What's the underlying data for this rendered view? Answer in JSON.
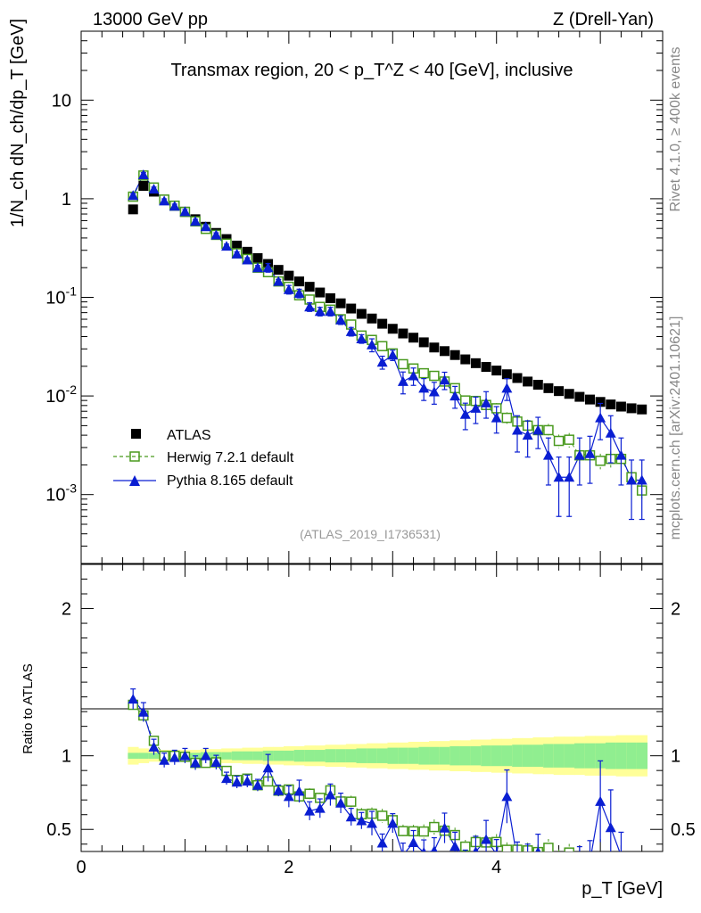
{
  "header": {
    "left": "13000 GeV pp",
    "right": "Z (Drell-Yan)"
  },
  "side_labels": {
    "top": "Rivet 4.1.0, ≥ 400k events",
    "bottom": "mcplots.cern.ch [arXiv:2401.10621]"
  },
  "chart_data": {
    "type": "scatter",
    "title": "Transmax region, 20 < p_T^Z < 40 [GeV], inclusive",
    "analysis_tag": "(ATLAS_2019_I1736531)",
    "xlabel": "p_T [GeV]",
    "ylabel": "1/N_ch dN_ch/dp_T [GeV]",
    "ratio_ylabel": "Ratio to ATLAS",
    "xlim": [
      0,
      5.6
    ],
    "ylim": [
      0.0002,
      50
    ],
    "yscale": "log",
    "ratio_ylim": [
      0.35,
      2.3
    ],
    "x_ticks": [
      "0",
      "2",
      "4"
    ],
    "y_ticks": [
      "10^-3",
      "10^-2",
      "10^-1",
      "1",
      "10"
    ],
    "ratio_ticks": [
      "0.5",
      "1",
      "2"
    ],
    "legend": [
      {
        "key": "atlas",
        "label": "ATLAS",
        "color": "#000000",
        "marker": "square-filled"
      },
      {
        "key": "herwig",
        "label": "Herwig 7.2.1 default",
        "color": "#4a9a1f",
        "marker": "square-open"
      },
      {
        "key": "pythia",
        "label": "Pythia 8.165 default",
        "color": "#0a1ed2",
        "marker": "triangle-filled"
      }
    ],
    "x": [
      0.5,
      0.6,
      0.7,
      0.8,
      0.9,
      1.0,
      1.1,
      1.2,
      1.3,
      1.4,
      1.5,
      1.6,
      1.7,
      1.8,
      1.9,
      2.0,
      2.1,
      2.2,
      2.3,
      2.4,
      2.5,
      2.6,
      2.7,
      2.8,
      2.9,
      3.0,
      3.1,
      3.2,
      3.3,
      3.4,
      3.5,
      3.6,
      3.7,
      3.8,
      3.9,
      4.0,
      4.1,
      4.2,
      4.3,
      4.4,
      4.5,
      4.6,
      4.7,
      4.8,
      4.9,
      5.0,
      5.1,
      5.2,
      5.3,
      5.4
    ],
    "series": [
      {
        "name": "ATLAS",
        "values": [
          0.78,
          1.35,
          1.18,
          0.98,
          0.85,
          0.74,
          0.62,
          0.52,
          0.45,
          0.39,
          0.335,
          0.29,
          0.25,
          0.218,
          0.19,
          0.166,
          0.145,
          0.128,
          0.112,
          0.098,
          0.087,
          0.077,
          0.068,
          0.061,
          0.054,
          0.048,
          0.043,
          0.039,
          0.035,
          0.031,
          0.0285,
          0.026,
          0.0235,
          0.0215,
          0.0197,
          0.0181,
          0.0166,
          0.0152,
          0.014,
          0.013,
          0.012,
          0.0112,
          0.0105,
          0.0098,
          0.0092,
          0.0087,
          0.0082,
          0.0078,
          0.0075,
          0.0073
        ]
      },
      {
        "name": "Herwig 7.2.1 default",
        "values": [
          1.05,
          1.72,
          1.3,
          0.98,
          0.85,
          0.735,
          0.59,
          0.495,
          0.43,
          0.35,
          0.28,
          0.245,
          0.2,
          0.18,
          0.145,
          0.128,
          0.105,
          0.095,
          0.08,
          0.075,
          0.06,
          0.053,
          0.041,
          0.037,
          0.032,
          0.027,
          0.021,
          0.019,
          0.017,
          0.016,
          0.014,
          0.012,
          0.009,
          0.0089,
          0.0081,
          0.0075,
          0.006,
          0.0055,
          0.005,
          0.0045,
          0.0045,
          0.0035,
          0.0036,
          0.0025,
          0.0025,
          0.0022,
          0.0023,
          0.0023,
          0.0015,
          0.0011
        ]
      },
      {
        "name": "Pythia 8.165 default",
        "values": [
          1.08,
          1.75,
          1.25,
          0.95,
          0.84,
          0.74,
          0.59,
          0.52,
          0.43,
          0.33,
          0.275,
          0.24,
          0.2,
          0.2,
          0.145,
          0.12,
          0.11,
          0.08,
          0.072,
          0.072,
          0.059,
          0.045,
          0.038,
          0.033,
          0.022,
          0.026,
          0.014,
          0.016,
          0.012,
          0.011,
          0.0145,
          0.01,
          0.0065,
          0.0075,
          0.0085,
          0.006,
          0.012,
          0.0045,
          0.004,
          0.0045,
          0.0025,
          0.0015,
          0.0015,
          0.0025,
          0.0026,
          0.006,
          0.0042,
          0.0025,
          0.0014,
          0.0014
        ]
      }
    ],
    "pythia_rel_err": [
      0.05,
      0.05,
      0.05,
      0.05,
      0.05,
      0.05,
      0.05,
      0.05,
      0.05,
      0.05,
      0.05,
      0.05,
      0.05,
      0.1,
      0.05,
      0.1,
      0.1,
      0.1,
      0.1,
      0.1,
      0.1,
      0.1,
      0.1,
      0.15,
      0.15,
      0.12,
      0.25,
      0.2,
      0.25,
      0.25,
      0.2,
      0.25,
      0.3,
      0.3,
      0.3,
      0.3,
      0.25,
      0.4,
      0.4,
      0.35,
      0.5,
      0.6,
      0.6,
      0.5,
      0.5,
      0.4,
      0.5,
      0.5,
      0.6,
      0.6
    ],
    "herwig_rel_err": [
      0.02,
      0.02,
      0.02,
      0.02,
      0.02,
      0.02,
      0.02,
      0.02,
      0.02,
      0.02,
      0.03,
      0.03,
      0.03,
      0.04,
      0.04,
      0.04,
      0.05,
      0.05,
      0.05,
      0.06,
      0.06,
      0.06,
      0.07,
      0.07,
      0.08,
      0.08,
      0.09,
      0.09,
      0.1,
      0.1,
      0.1,
      0.11,
      0.12,
      0.12,
      0.13,
      0.13,
      0.14,
      0.14,
      0.15,
      0.15,
      0.16,
      0.16,
      0.17,
      0.17,
      0.18,
      0.18,
      0.19,
      0.19,
      0.2,
      0.2
    ],
    "band_stat": [
      0.02,
      0.02,
      0.02,
      0.02,
      0.02,
      0.02,
      0.02,
      0.025,
      0.025,
      0.025,
      0.03,
      0.03,
      0.03,
      0.035,
      0.035,
      0.035,
      0.04,
      0.04,
      0.04,
      0.045,
      0.045,
      0.045,
      0.05,
      0.05,
      0.05,
      0.055,
      0.055,
      0.055,
      0.06,
      0.06,
      0.06,
      0.065,
      0.065,
      0.065,
      0.07,
      0.07,
      0.07,
      0.075,
      0.075,
      0.075,
      0.08,
      0.08,
      0.08,
      0.085,
      0.085,
      0.085,
      0.09,
      0.09,
      0.09,
      0.09
    ],
    "band_total": [
      0.06,
      0.05,
      0.04,
      0.04,
      0.04,
      0.04,
      0.04,
      0.045,
      0.045,
      0.05,
      0.05,
      0.055,
      0.055,
      0.06,
      0.06,
      0.065,
      0.065,
      0.07,
      0.07,
      0.075,
      0.075,
      0.08,
      0.08,
      0.085,
      0.085,
      0.09,
      0.09,
      0.095,
      0.095,
      0.1,
      0.1,
      0.105,
      0.105,
      0.11,
      0.11,
      0.115,
      0.115,
      0.12,
      0.12,
      0.125,
      0.125,
      0.13,
      0.13,
      0.13,
      0.135,
      0.135,
      0.135,
      0.14,
      0.14,
      0.14
    ],
    "band_colors": {
      "stat": "#90ee90",
      "total": "#ffff99"
    }
  }
}
